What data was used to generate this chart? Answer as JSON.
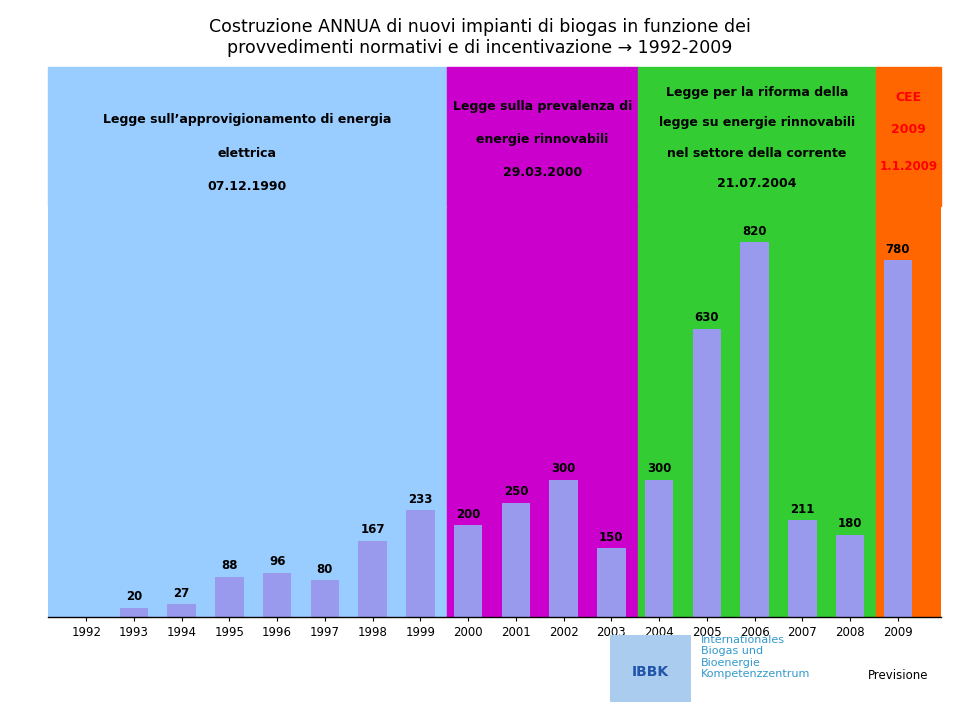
{
  "title_line1": "Costruzione ANNUA di nuovi impianti di biogas in funzione dei",
  "title_line2": "provvedimenti normativi e di incentivazione → 1992-2009",
  "years": [
    1992,
    1993,
    1994,
    1995,
    1996,
    1997,
    1998,
    1999,
    2000,
    2001,
    2002,
    2003,
    2004,
    2005,
    2006,
    2007,
    2008,
    2009
  ],
  "values": [
    0,
    20,
    27,
    88,
    96,
    80,
    167,
    233,
    200,
    250,
    300,
    150,
    300,
    630,
    820,
    211,
    180,
    780
  ],
  "bar_color": "#9999EE",
  "bg_colors": {
    "zone1": "#99CCFF",
    "zone2": "#CC00CC",
    "zone3": "#33CC33",
    "zone4": "#FF6600"
  },
  "label1_line1": "Legge sull’approvigionamento di energia",
  "label1_line2": "elettrica",
  "label1_line3": "07.12.1990",
  "label2_line1": "Legge sulla prevalenza di",
  "label2_line2": "energie rinnovabili",
  "label2_line3": "29.03.2000",
  "label3_line1": "Legge per la riforma della",
  "label3_line2": "legge su energie rinnovabili",
  "label3_line3": "nel settore della corrente",
  "label3_line4": "21.07.2004",
  "label4_line1": "CEE",
  "label4_line2": "2009",
  "label4_line3": "1.1.2009",
  "label4_color": "#FF0000",
  "previsione_text": "Previsione",
  "background_color": "#FFFFFF",
  "ibbk_text": "Internationales\nBiogas und\nBioenergie\nKompetenzzentrum",
  "ibbk_color": "#3399CC"
}
